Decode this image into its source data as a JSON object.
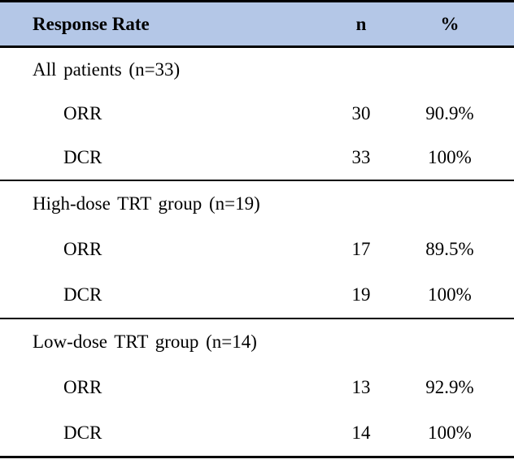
{
  "colors": {
    "header_bg": "#b4c7e7",
    "border": "#000000",
    "text": "#000000"
  },
  "table": {
    "header": {
      "col1": "Response Rate",
      "col2": "n",
      "col3": "%"
    },
    "sections": [
      {
        "label": "All patients (n=33)",
        "rows": [
          {
            "name": "ORR",
            "n": "30",
            "pct": "90.9%"
          },
          {
            "name": "DCR",
            "n": "33",
            "pct": "100%"
          }
        ]
      },
      {
        "label": "High-dose TRT group (n=19)",
        "rows": [
          {
            "name": "ORR",
            "n": "17",
            "pct": "89.5%"
          },
          {
            "name": "DCR",
            "n": "19",
            "pct": "100%"
          }
        ]
      },
      {
        "label": "Low-dose TRT group (n=14)",
        "rows": [
          {
            "name": "ORR",
            "n": "13",
            "pct": "92.9%"
          },
          {
            "name": "DCR",
            "n": "14",
            "pct": "100%"
          }
        ]
      }
    ]
  }
}
